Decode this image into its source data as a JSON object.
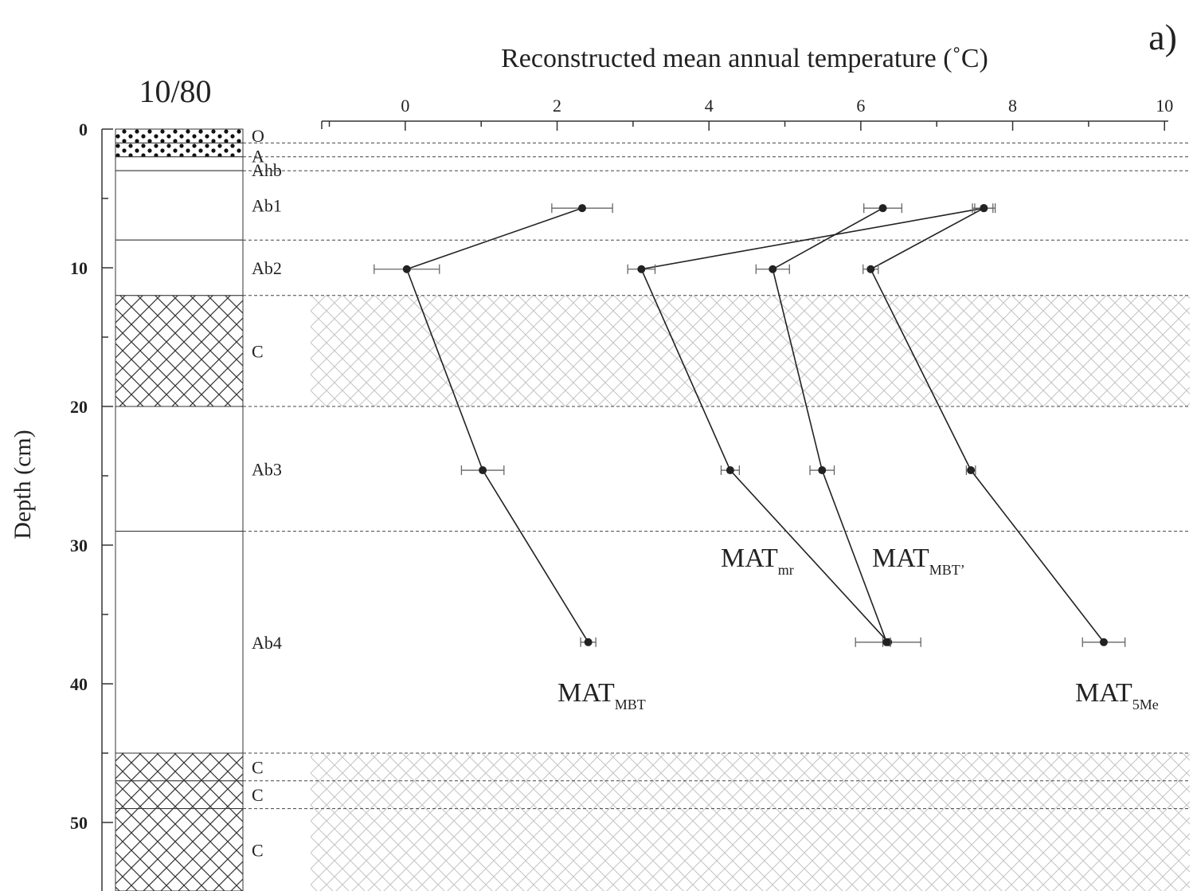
{
  "panel_label": "a)",
  "profile_title": "10/80",
  "chart_data": {
    "type": "line",
    "title": "",
    "xlabel": "Reconstructed mean annual temperature (˚C)",
    "ylabel": "Depth (cm)",
    "xlim": [
      -1.1,
      10.05
    ],
    "ylim": [
      55,
      0
    ],
    "x_ticks": [
      0,
      2,
      4,
      6,
      8,
      10
    ],
    "y_ticks": [
      0,
      10,
      20,
      30,
      40,
      50
    ],
    "grid": false,
    "legend": "none",
    "series": [
      {
        "name": "MAT MBT",
        "label_main": "MAT",
        "label_sub": "MBT",
        "depth": [
          5.7,
          10.1,
          24.6,
          37.0
        ],
        "temperature": [
          2.33,
          0.02,
          1.02,
          2.41
        ],
        "error": [
          0.4,
          0.43,
          0.28,
          0.1
        ]
      },
      {
        "name": "MAT mr",
        "label_main": "MAT",
        "label_sub": "mr",
        "depth": [
          5.7,
          10.1,
          24.6,
          37.0
        ],
        "temperature": [
          7.62,
          3.11,
          4.28,
          6.36
        ],
        "error": [
          0.12,
          0.18,
          0.12,
          0.43
        ]
      },
      {
        "name": "MAT MBT'",
        "label_main": "MAT",
        "label_sub": "MBT’",
        "depth": [
          5.7,
          10.1,
          24.6,
          37.0
        ],
        "temperature": [
          6.29,
          4.84,
          5.49,
          6.34
        ],
        "error": [
          0.25,
          0.22,
          0.16,
          0.05
        ]
      },
      {
        "name": "MAT 5Me",
        "label_main": "MAT",
        "label_sub": "5Me",
        "depth": [
          5.7,
          10.1,
          24.6,
          37.0
        ],
        "temperature": [
          7.62,
          6.13,
          7.45,
          9.2
        ],
        "error": [
          0.15,
          0.1,
          0.06,
          0.28
        ]
      }
    ],
    "horizons": [
      {
        "name": "O",
        "top": 0,
        "bottom": 1,
        "pattern": "dots"
      },
      {
        "name": "A",
        "top": 1,
        "bottom": 2,
        "pattern": "dots"
      },
      {
        "name": "Ahb",
        "top": 2,
        "bottom": 3,
        "pattern": "none"
      },
      {
        "name": "Ab1",
        "top": 3,
        "bottom": 8,
        "pattern": "none"
      },
      {
        "name": "Ab2",
        "top": 8,
        "bottom": 12,
        "pattern": "none"
      },
      {
        "name": "C",
        "top": 12,
        "bottom": 20,
        "pattern": "crosshatch"
      },
      {
        "name": "Ab3",
        "top": 20,
        "bottom": 29,
        "pattern": "none"
      },
      {
        "name": "Ab4",
        "top": 29,
        "bottom": 45,
        "pattern": "none"
      },
      {
        "name": "C",
        "top": 45,
        "bottom": 47,
        "pattern": "crosshatch"
      },
      {
        "name": "C",
        "top": 47,
        "bottom": 49,
        "pattern": "crosshatch"
      },
      {
        "name": "C",
        "top": 49,
        "bottom": 55,
        "pattern": "crosshatch"
      }
    ]
  }
}
